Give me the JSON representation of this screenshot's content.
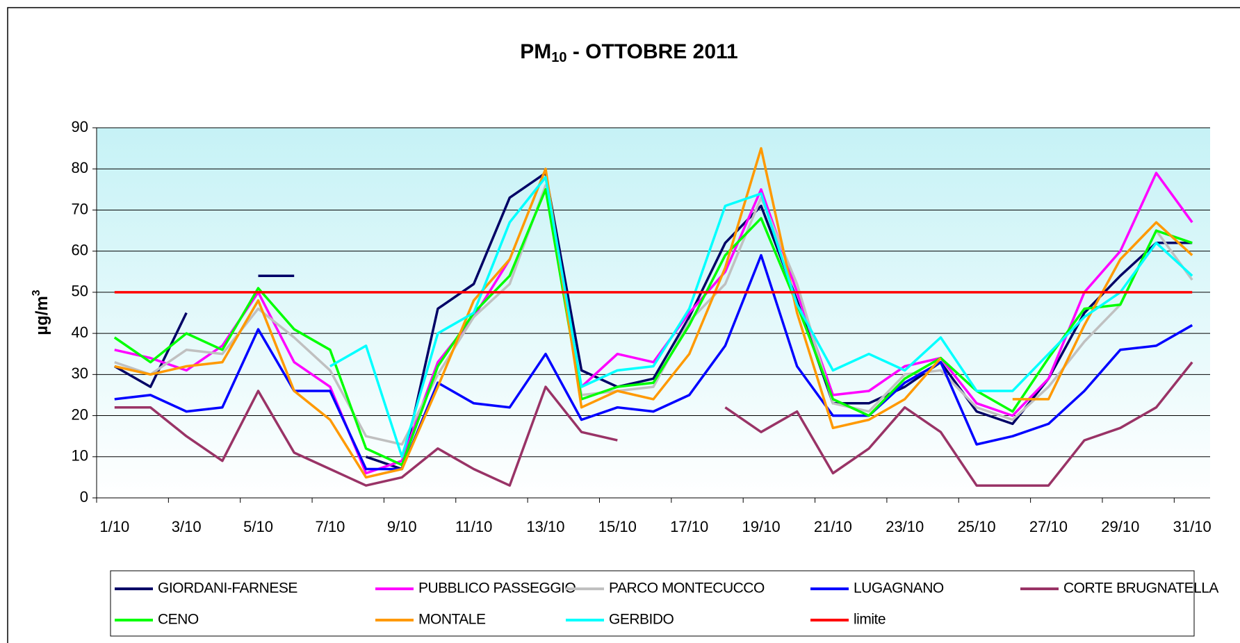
{
  "chart_data": {
    "type": "line",
    "title_main": "PM",
    "title_sub": "10",
    "title_rest": " - OTTOBRE 2011",
    "y_label_main": "µg/m",
    "y_label_sup": "3",
    "categories": [
      "1/10",
      null,
      "3/10",
      null,
      "5/10",
      null,
      "7/10",
      null,
      "9/10",
      null,
      "11/10",
      null,
      "13/10",
      null,
      "15/10",
      null,
      "17/10",
      null,
      "19/10",
      null,
      "21/10",
      null,
      "23/10",
      null,
      "25/10",
      null,
      "27/10",
      null,
      "29/10",
      null,
      "31/10"
    ],
    "ylim": [
      0,
      90
    ],
    "yticks": [
      0,
      10,
      20,
      30,
      40,
      50,
      60,
      70,
      80,
      90
    ],
    "grid": true,
    "series": [
      {
        "name": "GIORDANI-FARNESE",
        "color": "#000066",
        "values": [
          32,
          27,
          45,
          null,
          54,
          54,
          null,
          10,
          7,
          46,
          52,
          73,
          79,
          31,
          27,
          29,
          44,
          62,
          71,
          48,
          23,
          23,
          27,
          33,
          21,
          18,
          29,
          45,
          54,
          62,
          62
        ]
      },
      {
        "name": "PUBBLICO PASSEGGIO",
        "color": "#ff00ff",
        "values": [
          36,
          34,
          31,
          37,
          50,
          33,
          27,
          6,
          9,
          33,
          44,
          58,
          null,
          27,
          35,
          33,
          45,
          55,
          75,
          50,
          25,
          26,
          32,
          34,
          23,
          20,
          29,
          50,
          60,
          79,
          67
        ]
      },
      {
        "name": "PARCO MONTECUCCO",
        "color": "#c0c0c0",
        "values": [
          33,
          30,
          36,
          35,
          46,
          39,
          31,
          15,
          13,
          30,
          44,
          52,
          76,
          25,
          26,
          27,
          43,
          52,
          73,
          52,
          23,
          21,
          30,
          31,
          22,
          19,
          27,
          38,
          47,
          65,
          53
        ]
      },
      {
        "name": "LUGAGNANO",
        "color": "#0000ff",
        "values": [
          24,
          25,
          21,
          22,
          41,
          26,
          26,
          7,
          7,
          28,
          23,
          22,
          35,
          19,
          22,
          21,
          25,
          37,
          59,
          32,
          20,
          20,
          28,
          33,
          13,
          15,
          18,
          26,
          36,
          37,
          42
        ]
      },
      {
        "name": "CORTE BRUGNATELLA",
        "color": "#993366",
        "values": [
          22,
          22,
          15,
          9,
          26,
          11,
          7,
          3,
          5,
          12,
          7,
          3,
          27,
          16,
          14,
          null,
          null,
          22,
          16,
          21,
          6,
          12,
          22,
          16,
          3,
          3,
          3,
          14,
          17,
          22,
          33
        ]
      },
      {
        "name": "CENO",
        "color": "#00ff00",
        "values": [
          39,
          33,
          40,
          36,
          51,
          41,
          36,
          12,
          8,
          32,
          45,
          54,
          75,
          24,
          27,
          28,
          42,
          59,
          68,
          47,
          24,
          20,
          29,
          34,
          26,
          21,
          34,
          46,
          47,
          65,
          62
        ]
      },
      {
        "name": "MONTALE",
        "color": "#ff9900",
        "values": [
          32,
          30,
          32,
          33,
          48,
          26,
          19,
          5,
          7,
          27,
          48,
          58,
          80,
          22,
          26,
          24,
          35,
          56,
          85,
          45,
          17,
          19,
          24,
          34,
          null,
          24,
          24,
          42,
          58,
          67,
          59
        ]
      },
      {
        "name": "GERBIDO",
        "color": "#00ffff",
        "values": [
          null,
          null,
          null,
          null,
          null,
          null,
          32,
          37,
          10,
          40,
          45,
          67,
          78,
          27,
          31,
          32,
          46,
          71,
          74,
          47,
          31,
          35,
          31,
          39,
          26,
          26,
          35,
          44,
          50,
          62,
          54
        ]
      },
      {
        "name": "limite",
        "color": "#ff0000",
        "values": [
          50,
          50,
          50,
          50,
          50,
          50,
          50,
          50,
          50,
          50,
          50,
          50,
          50,
          50,
          50,
          50,
          50,
          50,
          50,
          50,
          50,
          50,
          50,
          50,
          50,
          50,
          50,
          50,
          50,
          50,
          50
        ]
      }
    ]
  }
}
